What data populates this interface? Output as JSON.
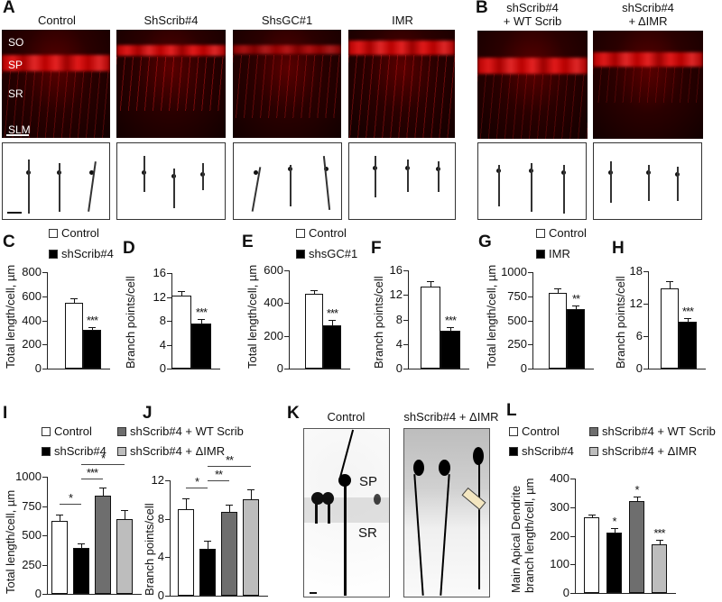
{
  "panel_A": {
    "label": "A",
    "conditions": [
      "Control",
      "ShScrib#4",
      "ShsGC#1",
      "IMR"
    ],
    "layers": [
      "SO",
      "SP",
      "SR",
      "SLM"
    ]
  },
  "panel_B": {
    "label": "B",
    "conditions": [
      {
        "line1": "shScrib#4",
        "line2": "+ WT Scrib"
      },
      {
        "line1": "shScrib#4",
        "line2": "+ ΔIMR"
      }
    ]
  },
  "panel_K": {
    "label": "K",
    "conditions": [
      "Control",
      "shScrib#4 + ΔIMR"
    ],
    "layers": [
      "SP",
      "SR"
    ],
    "annotation": "arrow"
  },
  "legends": {
    "CD": [
      "Control",
      "shScrib#4"
    ],
    "EF": [
      "Control",
      "shsGC#1"
    ],
    "GH": [
      "Control",
      "IMR"
    ],
    "IJ": [
      "Control",
      "shScrib#4",
      "shScrib#4 + WT Scrib",
      "shScrib#4 + ΔIMR"
    ],
    "L": [
      "Control",
      "shScrib#4",
      "shScrib#4 + WT Scrib",
      "shScrib#4 + ΔIMR"
    ]
  },
  "colors": {
    "control": "#ffffff",
    "knockdown": "#000000",
    "wt_rescue": "#6e6e6e",
    "dimr_rescue": "#bdbdbd",
    "stain_red": "#ff2020"
  },
  "chart_data": [
    {
      "panel": "C",
      "type": "bar",
      "categories": [
        "Control",
        "shScrib#4"
      ],
      "values": [
        548,
        318
      ],
      "errors": [
        35,
        28
      ],
      "significance": [
        "",
        "***"
      ],
      "ylabel": "Total length/cell, µm",
      "ylim": [
        0,
        800
      ],
      "yticks": [
        "0",
        "200",
        "400",
        "600",
        "800"
      ]
    },
    {
      "panel": "D",
      "type": "bar",
      "categories": [
        "Control",
        "shScrib#4"
      ],
      "values": [
        12.2,
        7.6
      ],
      "errors": [
        0.8,
        0.7
      ],
      "significance": [
        "",
        "***"
      ],
      "ylabel": "Branch points/cell",
      "ylim": [
        0,
        16
      ],
      "yticks": [
        "0",
        "4",
        "8",
        "12",
        "16"
      ]
    },
    {
      "panel": "E",
      "type": "bar",
      "categories": [
        "Control",
        "shsGC#1"
      ],
      "values": [
        455,
        265
      ],
      "errors": [
        25,
        30
      ],
      "significance": [
        "",
        "***"
      ],
      "ylabel": "Total length/cell, µm",
      "ylim": [
        0,
        600
      ],
      "yticks": [
        "0",
        "200",
        "400",
        "600"
      ]
    },
    {
      "panel": "F",
      "type": "bar",
      "categories": [
        "Control",
        "shsGC#1"
      ],
      "values": [
        13.4,
        6.2
      ],
      "errors": [
        0.8,
        0.6
      ],
      "significance": [
        "",
        "***"
      ],
      "ylabel": "Branch points/cell",
      "ylim": [
        0,
        16
      ],
      "yticks": [
        "0",
        "4",
        "8",
        "12",
        "16"
      ]
    },
    {
      "panel": "G",
      "type": "bar",
      "categories": [
        "Control",
        "IMR"
      ],
      "values": [
        785,
        615
      ],
      "errors": [
        45,
        35
      ],
      "significance": [
        "",
        "**"
      ],
      "ylabel": "Total length/cell, µm",
      "ylim": [
        0,
        1000
      ],
      "yticks": [
        "0",
        "250",
        "500",
        "750",
        "1000"
      ]
    },
    {
      "panel": "H",
      "type": "bar",
      "categories": [
        "Control",
        "IMR"
      ],
      "values": [
        14.8,
        8.7
      ],
      "errors": [
        1.3,
        0.6
      ],
      "significance": [
        "",
        "***"
      ],
      "ylabel": "Branch points/cell",
      "ylim": [
        0,
        18
      ],
      "yticks": [
        "0",
        "6",
        "12",
        "18"
      ]
    },
    {
      "panel": "I",
      "type": "bar",
      "categories": [
        "Control",
        "shScrib#4",
        "shScrib#4 + WT Scrib",
        "shScrib#4 + ΔIMR"
      ],
      "values": [
        620,
        390,
        840,
        640
      ],
      "errors": [
        55,
        40,
        70,
        75
      ],
      "comparisons": [
        {
          "from": 0,
          "to": 1,
          "label": "*"
        },
        {
          "from": 1,
          "to": 2,
          "label": "***"
        },
        {
          "from": 1,
          "to": 3,
          "label": "*"
        }
      ],
      "ylabel": "Total length/cell, µm",
      "ylim": [
        0,
        1000
      ],
      "yticks": [
        "0",
        "250",
        "500",
        "750",
        "1000"
      ]
    },
    {
      "panel": "J",
      "type": "bar",
      "categories": [
        "Control",
        "shScrib#4",
        "shScrib#4 + WT Scrib",
        "shScrib#4 + ΔIMR"
      ],
      "values": [
        9.0,
        4.9
      ],
      "values_rest": [
        8.7,
        10.0
      ],
      "all_values": [
        9.0,
        4.9,
        8.7,
        10.0
      ],
      "errors": [
        1.1,
        0.8,
        0.8,
        1.1
      ],
      "comparisons": [
        {
          "from": 0,
          "to": 1,
          "label": "*"
        },
        {
          "from": 1,
          "to": 2,
          "label": "**"
        },
        {
          "from": 1,
          "to": 3,
          "label": "**"
        }
      ],
      "ylabel": "Branch points/cell",
      "ylim": [
        0,
        12
      ],
      "yticks": [
        "0",
        "4",
        "8",
        "12"
      ]
    },
    {
      "panel": "L",
      "type": "bar",
      "categories": [
        "Control",
        "shScrib#4",
        "shScrib#4 + WT Scrib",
        "shScrib#4 + ΔIMR"
      ],
      "values": [
        265,
        210,
        320,
        170
      ],
      "errors": [
        10,
        17,
        17,
        15
      ],
      "significance": [
        "",
        "*",
        "*",
        "***"
      ],
      "ylabel": "Main Apical Dendrite branch length/cell, µm",
      "ylabel_lines": [
        "Main Apical Dendrite",
        "branch length/cell, µm"
      ],
      "ylim": [
        0,
        400
      ],
      "yticks": [
        "0",
        "100",
        "200",
        "300",
        "400"
      ]
    }
  ]
}
